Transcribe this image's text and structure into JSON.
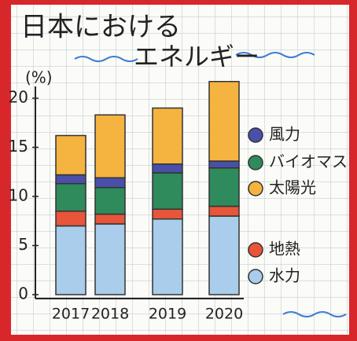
{
  "chart_data": {
    "type": "stacked-bar",
    "title": "日本における",
    "subtitle": "エネルギー",
    "y_label": "(%)",
    "categories": [
      "2017",
      "2018",
      "2019",
      "2020"
    ],
    "series": [
      {
        "name": "水力",
        "color": "#a9cdea",
        "values": [
          7.0,
          7.2,
          7.7,
          8.0
        ]
      },
      {
        "name": "地熱",
        "color": "#e8553a",
        "values": [
          1.5,
          1.0,
          1.0,
          1.0
        ]
      },
      {
        "name": "バイオマス",
        "color": "#2f8a5c",
        "values": [
          2.8,
          2.7,
          3.7,
          3.9
        ]
      },
      {
        "name": "風力",
        "color": "#4a4fa8",
        "values": [
          0.9,
          1.0,
          0.9,
          0.7
        ]
      },
      {
        "name": "太陽光",
        "color": "#f5b340",
        "values": [
          4.0,
          6.4,
          5.7,
          8.1
        ]
      }
    ],
    "ylim": [
      0,
      22
    ],
    "yticks": [
      0,
      5,
      10,
      15,
      20
    ]
  }
}
